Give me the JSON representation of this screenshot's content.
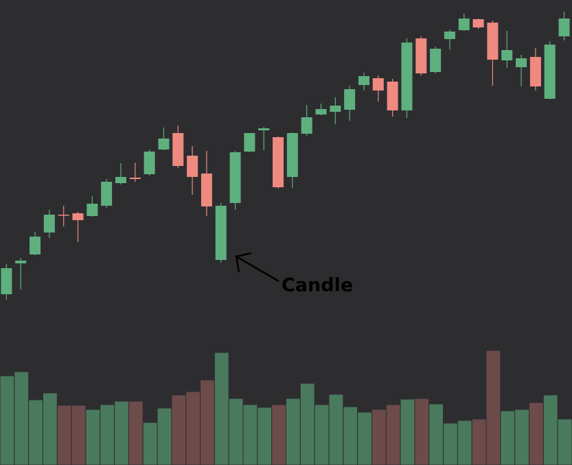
{
  "chart_data": {
    "type": "candlestick",
    "annotation": "Candle",
    "up_color": "#5fb07f",
    "down_color": "#ee8a80",
    "volume_up_color": "#4a7a5e",
    "volume_down_color": "#6d4b4b",
    "ylim": [
      240,
      678
    ],
    "volume_ylim": [
      0,
      170
    ],
    "open": [
      249,
      294,
      307,
      339,
      365,
      367,
      363,
      378,
      411,
      419,
      424,
      460,
      484,
      451,
      425,
      299,
      382,
      457,
      488,
      478,
      420,
      483,
      511,
      515,
      518,
      554,
      564,
      559,
      517,
      622,
      573,
      621,
      634,
      650,
      645,
      590,
      580,
      595,
      534,
      625
    ],
    "high": [
      293,
      302,
      340,
      372,
      378,
      369,
      392,
      417,
      440,
      441,
      460,
      492,
      495,
      465,
      458,
      382,
      458,
      484,
      493,
      479,
      485,
      525,
      527,
      536,
      553,
      572,
      568,
      563,
      622,
      625,
      610,
      635,
      658,
      651,
      648,
      633,
      598,
      608,
      618,
      661
    ],
    "low": [
      241,
      256,
      306,
      331,
      348,
      325,
      362,
      375,
      409,
      413,
      422,
      459,
      433,
      394,
      363,
      295,
      372,
      456,
      459,
      403,
      404,
      480,
      510,
      497,
      502,
      546,
      530,
      508,
      506,
      568,
      571,
      606,
      633,
      636,
      553,
      579,
      552,
      546,
      533,
      619
    ],
    "close": [
      287,
      298,
      333,
      365,
      364,
      357,
      381,
      413,
      420,
      417,
      457,
      476,
      436,
      420,
      377,
      378,
      456,
      484,
      491,
      405,
      484,
      507,
      519,
      524,
      548,
      567,
      546,
      517,
      616,
      571,
      607,
      632,
      651,
      638,
      591,
      605,
      593,
      552,
      613,
      651
    ],
    "volume": [
      130,
      136,
      95,
      105,
      87,
      87,
      81,
      88,
      93,
      93,
      62,
      83,
      102,
      107,
      124,
      164,
      97,
      88,
      84,
      88,
      97,
      119,
      88,
      103,
      85,
      77,
      81,
      88,
      96,
      97,
      89,
      61,
      65,
      67,
      167,
      79,
      81,
      91,
      102,
      67
    ]
  }
}
